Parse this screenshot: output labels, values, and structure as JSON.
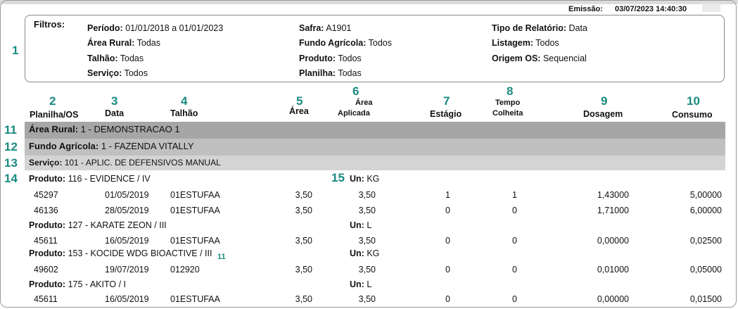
{
  "emission": {
    "label": "Emissão:",
    "value": "03/07/2023  14:40:30"
  },
  "filters": {
    "title": "Filtros:",
    "items": [
      {
        "label": "Período:",
        "value": "01/01/2018 a 01/01/2023"
      },
      {
        "label": "Área Rural:",
        "value": "Todas"
      },
      {
        "label": "Talhão:",
        "value": "Todas"
      },
      {
        "label": "Serviço:",
        "value": "Todos"
      },
      {
        "label": "Safra:",
        "value": "A1901"
      },
      {
        "label": "Fundo Agrícola:",
        "value": "Todos"
      },
      {
        "label": "Produto:",
        "value": "Todos"
      },
      {
        "label": "Planilha:",
        "value": "Todas"
      },
      {
        "label": "Tipo de Relatório:",
        "value": "Data"
      },
      {
        "label": "Listagem:",
        "value": "Todos"
      },
      {
        "label": "Origem OS:",
        "value": "Sequencial"
      }
    ]
  },
  "annotations": [
    "1",
    "2",
    "3",
    "4",
    "5",
    "6",
    "7",
    "8",
    "9",
    "10",
    "11",
    "12",
    "13",
    "14",
    "15",
    "11"
  ],
  "columns": {
    "planilha": "Planilha/OS",
    "data": "Data",
    "talhao": "Talhão",
    "area": "Área",
    "area_aplicada_1": "Área",
    "area_aplicada_2": "Aplicada",
    "estagio": "Estágio",
    "tempo_1": "Tempo",
    "tempo_2": "Colheita",
    "dosagem": "Dosagem",
    "consumo": "Consumo"
  },
  "groups": {
    "area_rural": {
      "label": "Área Rural:",
      "value": "1 - DEMONSTRACAO 1"
    },
    "fundo": {
      "label": "Fundo Agrícola:",
      "value": "1 - FAZENDA VITALLY"
    },
    "servico": {
      "label": "Serviço:",
      "value": "101 - APLIC. DE DEFENSIVOS MANUAL"
    }
  },
  "products": [
    {
      "label": "Produto:",
      "name": "116 - EVIDENCE / IV",
      "un_label": "Un:",
      "un": "KG",
      "rows": [
        {
          "os": "45297",
          "data": "01/05/2019",
          "talhao": "01ESTUFAA",
          "area": "3,50",
          "area_apl": "3,50",
          "estagio": "1",
          "tempo": "1",
          "dosagem": "1,43000",
          "consumo": "5,00000"
        },
        {
          "os": "46136",
          "data": "28/05/2019",
          "talhao": "01ESTUFAA",
          "area": "3,50",
          "area_apl": "3,50",
          "estagio": "0",
          "tempo": "0",
          "dosagem": "1,71000",
          "consumo": "6,00000"
        }
      ]
    },
    {
      "label": "Produto:",
      "name": "127 - KARATE ZEON / III",
      "un_label": "Un:",
      "un": "L",
      "rows": [
        {
          "os": "45611",
          "data": "16/05/2019",
          "talhao": "01ESTUFAA",
          "area": "3,50",
          "area_apl": "3,50",
          "estagio": "0",
          "tempo": "0",
          "dosagem": "0,00000",
          "consumo": "0,02500"
        }
      ]
    },
    {
      "label": "Produto:",
      "name": "153 - KOCIDE WDG BIOACTIVE / III",
      "un_label": "Un:",
      "un": "KG",
      "rows": [
        {
          "os": "49602",
          "data": "19/07/2019",
          "talhao": "012920",
          "area": "3,50",
          "area_apl": "3,50",
          "estagio": "0",
          "tempo": "0",
          "dosagem": "0,01000",
          "consumo": "0,05000"
        }
      ]
    },
    {
      "label": "Produto:",
      "name": "175 - AKITO / I",
      "un_label": "Un:",
      "un": "L",
      "rows": [
        {
          "os": "45611",
          "data": "16/05/2019",
          "talhao": "01ESTUFAA",
          "area": "3,50",
          "area_apl": "3,50",
          "estagio": "0",
          "tempo": "0",
          "dosagem": "0,00000",
          "consumo": "0,01500"
        }
      ]
    }
  ]
}
